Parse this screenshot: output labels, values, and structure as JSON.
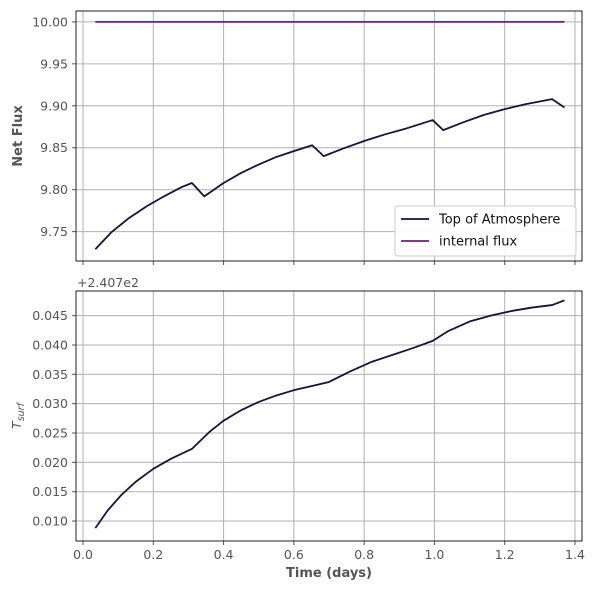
{
  "chart_data": [
    {
      "type": "line",
      "ylabel": "Net Flux",
      "xlabel": "",
      "xlim": [
        -0.02,
        1.42
      ],
      "ylim": [
        9.715,
        10.013
      ],
      "xticks": [
        0.0,
        0.2,
        0.4,
        0.6,
        0.8,
        1.0,
        1.2,
        1.4
      ],
      "xtick_labels_visible": false,
      "yticks": [
        9.75,
        9.8,
        9.85,
        9.9,
        9.95,
        10.0
      ],
      "ytick_labels": [
        "9.75",
        "9.80",
        "9.85",
        "9.90",
        "9.95",
        "10.00"
      ],
      "grid": true,
      "legend_position": "lower-right",
      "series": [
        {
          "name": "Top of Atmosphere",
          "color": "#17133b",
          "x": [
            0.035,
            0.08,
            0.13,
            0.18,
            0.23,
            0.28,
            0.31,
            0.345,
            0.4,
            0.45,
            0.5,
            0.55,
            0.6,
            0.652,
            0.685,
            0.74,
            0.8,
            0.86,
            0.92,
            0.995,
            1.025,
            1.08,
            1.14,
            1.2,
            1.26,
            1.335,
            1.37
          ],
          "values": [
            9.729,
            9.749,
            9.766,
            9.78,
            9.792,
            9.803,
            9.808,
            9.792,
            9.808,
            9.82,
            9.83,
            9.839,
            9.846,
            9.853,
            9.84,
            9.849,
            9.858,
            9.866,
            9.873,
            9.883,
            9.871,
            9.88,
            9.889,
            9.896,
            9.902,
            9.908,
            9.898
          ]
        },
        {
          "name": "internal flux",
          "color": "#6b1f6e",
          "x": [
            0.035,
            1.37
          ],
          "values": [
            10.0,
            10.0
          ]
        }
      ]
    },
    {
      "type": "line",
      "ylabel": "T_surf",
      "ylabel_main": "T",
      "ylabel_sub": "surf",
      "xlabel": "Time (days)",
      "offset_text": "+2.407e2",
      "xlim": [
        -0.02,
        1.42
      ],
      "ylim": [
        0.0066,
        0.0492
      ],
      "xticks": [
        0.0,
        0.2,
        0.4,
        0.6,
        0.8,
        1.0,
        1.2,
        1.4
      ],
      "xtick_labels": [
        "0.0",
        "0.2",
        "0.4",
        "0.6",
        "0.8",
        "1.0",
        "1.2",
        "1.4"
      ],
      "yticks": [
        0.01,
        0.015,
        0.02,
        0.025,
        0.03,
        0.035,
        0.04,
        0.045
      ],
      "ytick_labels": [
        "0.010",
        "0.015",
        "0.020",
        "0.025",
        "0.030",
        "0.035",
        "0.040",
        "0.045"
      ],
      "grid": true,
      "series": [
        {
          "name": "",
          "color": "#17133b",
          "x": [
            0.035,
            0.07,
            0.11,
            0.15,
            0.2,
            0.25,
            0.31,
            0.36,
            0.4,
            0.45,
            0.5,
            0.55,
            0.6,
            0.65,
            0.7,
            0.76,
            0.82,
            0.88,
            0.94,
            0.995,
            1.04,
            1.1,
            1.16,
            1.22,
            1.28,
            1.335,
            1.37
          ],
          "values": [
            0.0088,
            0.0118,
            0.0145,
            0.0167,
            0.0189,
            0.0206,
            0.0223,
            0.0252,
            0.0271,
            0.0289,
            0.0303,
            0.0314,
            0.0323,
            0.033,
            0.0337,
            0.0355,
            0.0371,
            0.0383,
            0.0395,
            0.0407,
            0.0424,
            0.044,
            0.045,
            0.0458,
            0.0464,
            0.0468,
            0.0476
          ]
        }
      ]
    }
  ]
}
